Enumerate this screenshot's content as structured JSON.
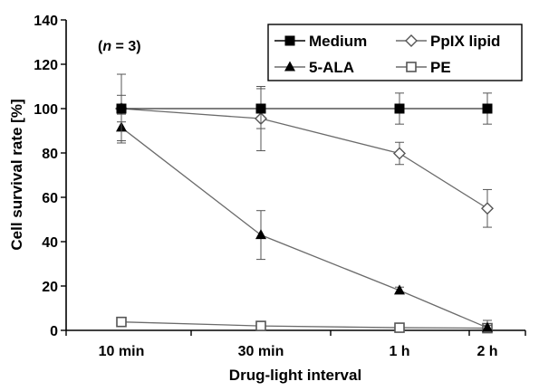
{
  "chart_data": {
    "type": "line",
    "categories": [
      "10 min",
      "30 min",
      "1 h",
      "2 h"
    ],
    "xlabel": "Drug-light interval",
    "ylabel": "Cell survival rate [%]",
    "ylim": [
      0,
      140
    ],
    "yticks": [
      0,
      20,
      40,
      60,
      80,
      100,
      120,
      140
    ],
    "grid": false,
    "legend_position": "top-right",
    "annotation": "(n = 3)",
    "series": [
      {
        "name": "Medium",
        "values": [
          100,
          100,
          100,
          100
        ],
        "errors": [
          6,
          9,
          7,
          7
        ],
        "marker": "filled-square",
        "color": "#333333"
      },
      {
        "name": "PpIX lipid",
        "values": [
          100,
          95.5,
          79.8,
          55
        ],
        "errors": [
          15.5,
          14.5,
          5,
          8.5
        ],
        "marker": "open-diamond",
        "color": "#6b6b6b"
      },
      {
        "name": "5-ALA",
        "values": [
          91.5,
          43,
          18,
          1.2
        ],
        "errors": [
          6,
          11,
          1.5,
          1
        ],
        "marker": "filled-triangle",
        "color": "#6b6b6b"
      },
      {
        "name": "PE",
        "values": [
          3.8,
          2,
          1.2,
          1
        ],
        "errors": [
          0.6,
          0.6,
          0.5,
          3.5
        ],
        "marker": "open-square",
        "color": "#6b6b6b"
      }
    ]
  }
}
